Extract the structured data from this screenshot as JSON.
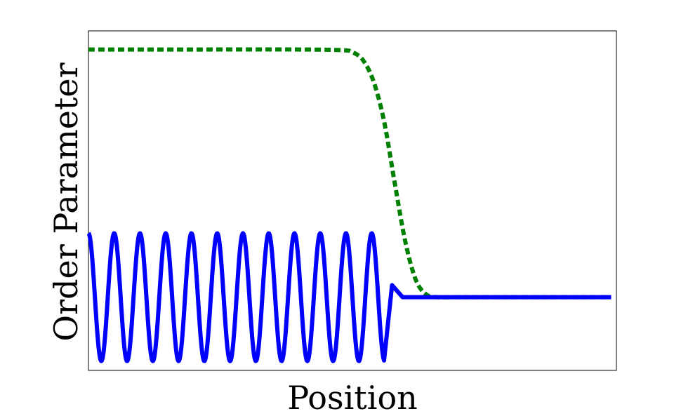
{
  "chart_data": {
    "type": "line",
    "title": "",
    "xlabel": "Position",
    "ylabel": "Order Parameter",
    "xlim": [
      0,
      1
    ],
    "ylim": [
      -0.55,
      2.0
    ],
    "grid": false,
    "legend": "none",
    "xticks_visible": false,
    "yticks_visible": false,
    "series": [
      {
        "style": "dashed",
        "color": "#008000",
        "x": [
          0.0,
          0.2,
          0.4,
          0.48,
          0.5,
          0.52,
          0.54,
          0.56,
          0.58,
          0.6,
          0.62,
          0.64,
          0.66,
          0.7,
          0.8,
          0.99
        ],
        "y": [
          1.86,
          1.86,
          1.86,
          1.855,
          1.84,
          1.78,
          1.62,
          1.32,
          0.86,
          0.42,
          0.13,
          0.02,
          0.0,
          0.0,
          0.0,
          0.0
        ]
      },
      {
        "style": "solid",
        "color": "#0000ff",
        "equation": "y = amplitude * cos(2*pi*frequency*x) for x < 0.56; damped to 0 beyond",
        "amplitude": 0.48,
        "frequency": 20.5,
        "cutoff": 0.56,
        "x_range": [
          0.0,
          0.99
        ],
        "baseline_y": 0.0,
        "tail_points": {
          "x": [
            0.53,
            0.555,
            0.575,
            0.595,
            0.61
          ],
          "y": [
            0.42,
            -0.33,
            0.09,
            0.0,
            0.0
          ]
        }
      }
    ]
  }
}
